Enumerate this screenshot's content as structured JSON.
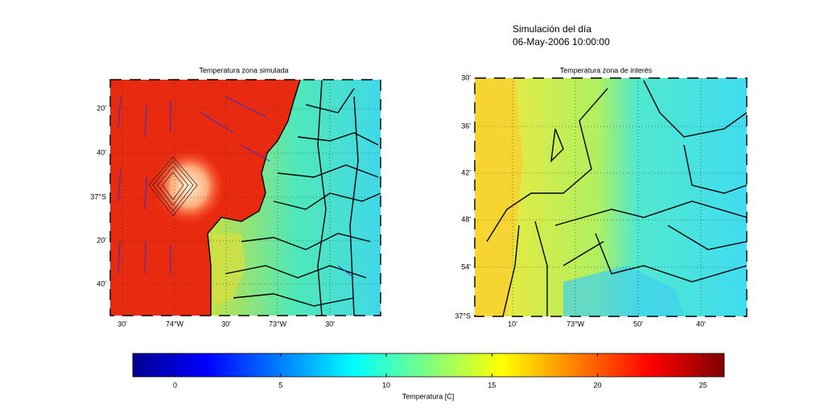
{
  "header": {
    "title": "Simulación del día",
    "subtitle": "06-May-2006 10:00:00"
  },
  "maps": [
    {
      "title": "Temperatura zona simulada",
      "y_labels": [
        "20'",
        "40'",
        "37°S",
        "20'",
        "40'"
      ],
      "x_labels": [
        "30'",
        "74°W",
        "30'",
        "73°W",
        "30'"
      ]
    },
    {
      "title": "Temperatura zona de interés",
      "y_labels": [
        "30'",
        "36'",
        "42'",
        "48'",
        "54'",
        "37°S"
      ],
      "x_labels": [
        "10'",
        "73°W",
        "50'",
        "40'"
      ]
    }
  ],
  "colorbar": {
    "label": "Temperatura [C]",
    "lim": [
      -2,
      26
    ],
    "ticks": [
      0,
      5,
      10,
      15,
      20,
      25
    ]
  }
}
